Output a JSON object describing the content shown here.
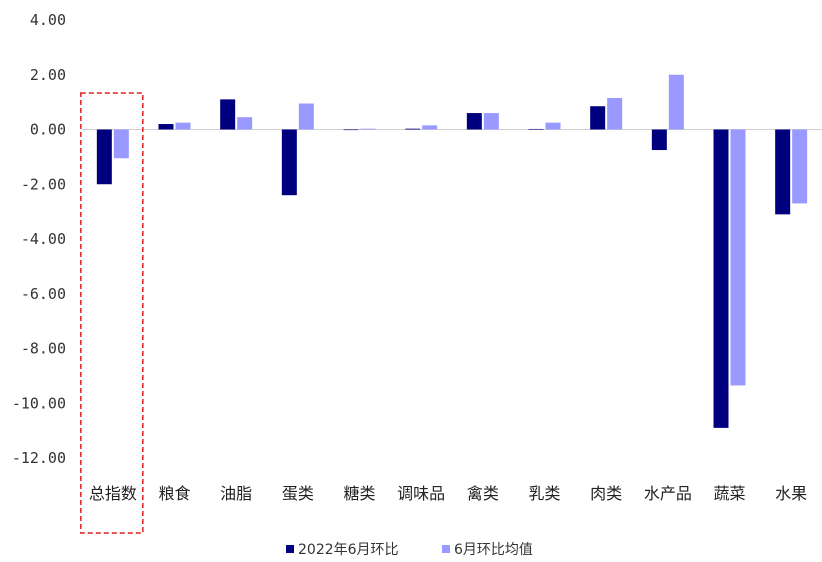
{
  "chart_data": {
    "type": "bar",
    "categories": [
      "总指数",
      "粮食",
      "油脂",
      "蛋类",
      "糖类",
      "调味品",
      "禽类",
      "乳类",
      "肉类",
      "水产品",
      "蔬菜",
      "水果"
    ],
    "series": [
      {
        "name": "2022年6月环比",
        "color": "#00007f",
        "values": [
          -2.0,
          0.2,
          1.1,
          -2.4,
          0.0,
          0.03,
          0.6,
          0.02,
          0.85,
          -0.75,
          -10.9,
          -3.1
        ]
      },
      {
        "name": "6月环比均值",
        "color": "#9999ff",
        "values": [
          -1.05,
          0.25,
          0.45,
          0.95,
          0.03,
          0.15,
          0.6,
          0.25,
          1.15,
          2.0,
          -9.35,
          -2.7
        ]
      }
    ],
    "ylim": [
      -12,
      4
    ],
    "y_ticks": [
      "4.00",
      "2.00",
      "0.00",
      "-2.00",
      "-4.00",
      "-6.00",
      "-8.00",
      "-10.00",
      "-12.00"
    ],
    "y_tick_values": [
      4,
      2,
      0,
      -2,
      -4,
      -6,
      -8,
      -10,
      -12
    ],
    "grid": false,
    "legend_position": "bottom",
    "highlight": {
      "category": "总指数",
      "style": "red dashed box",
      "color": "#e02020"
    }
  }
}
